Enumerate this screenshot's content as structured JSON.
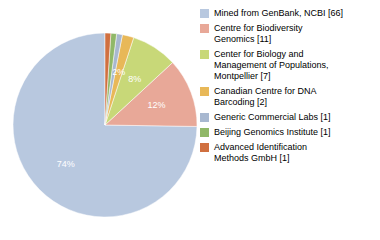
{
  "chart_data": {
    "type": "pie",
    "categories": [
      "Mined from GenBank, NCBI [66]",
      "Centre for Biodiversity\nGenomics [11]",
      "Center for Biology and\nManagement of Populations,\nMontpellier [7]",
      "Canadian Centre for DNA\nBarcoding [2]",
      "Generic Commercial Labs [1]",
      "Beijing Genomics Institute [1]",
      "Advanced Identification\nMethods GmbH [1]"
    ],
    "values": [
      74,
      12,
      8,
      2,
      1,
      1,
      1
    ],
    "value_labels": [
      "74%",
      "12%",
      "8%",
      "2%",
      null,
      null,
      null
    ],
    "colors": [
      "#b8c8df",
      "#e8a898",
      "#c8d878",
      "#e8b858",
      "#a8b8d0",
      "#90b868",
      "#d07040"
    ],
    "data_labels": true,
    "legend": "right"
  }
}
